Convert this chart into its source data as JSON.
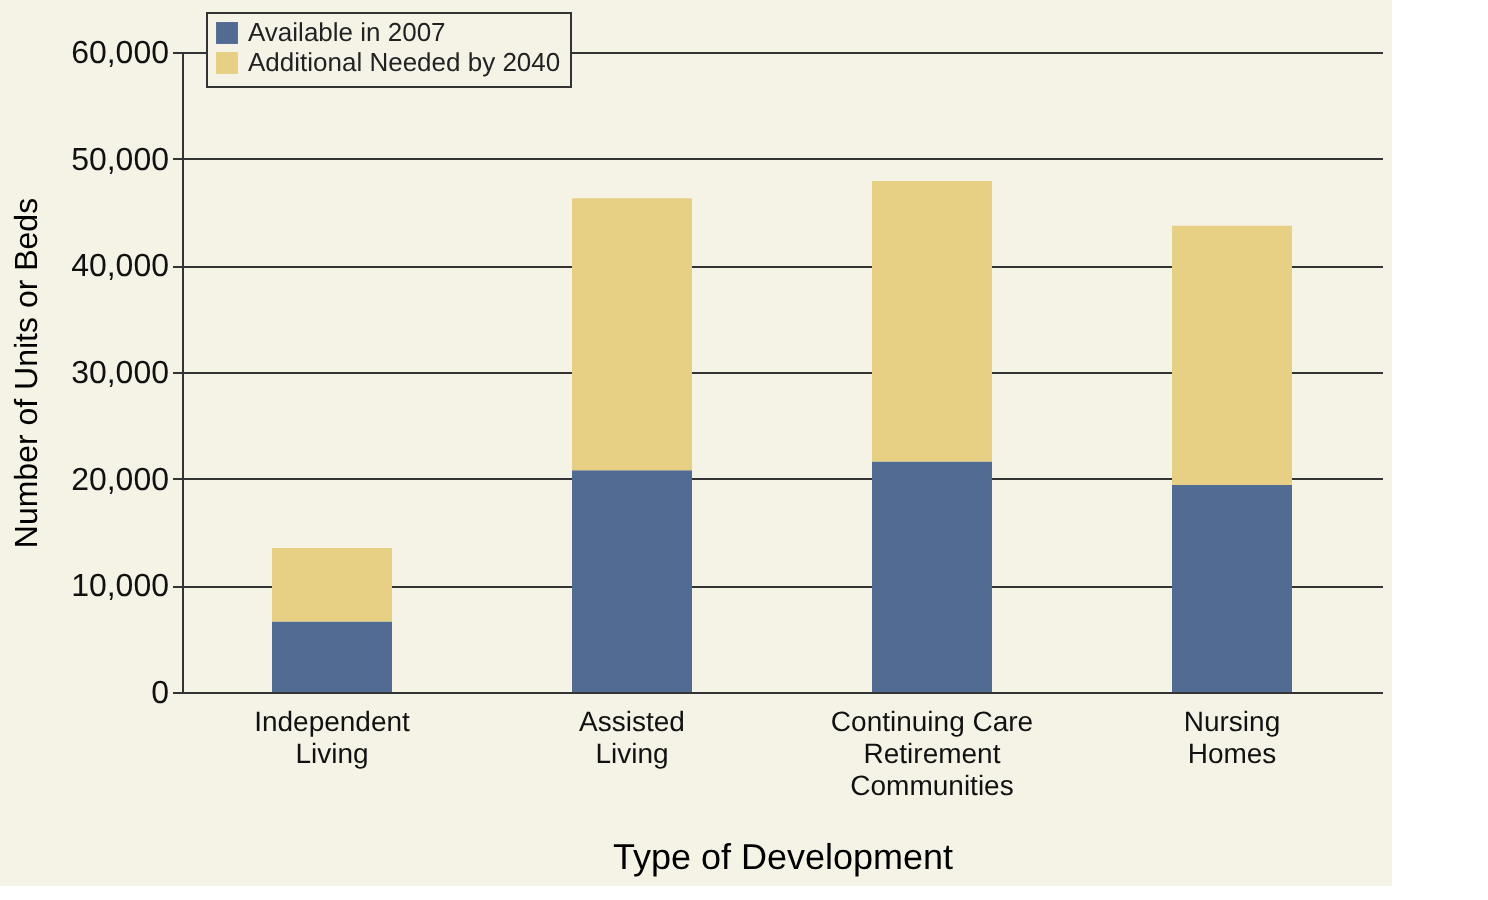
{
  "chart_data": {
    "type": "bar",
    "stacked": true,
    "xlabel": "Type of Development",
    "ylabel": "Number of Units or Beds",
    "categories": [
      "Independent\nLiving",
      "Assisted\nLiving",
      "Continuing Care\nRetirement\nCommunities",
      "Nursing\nHomes"
    ],
    "series": [
      {
        "name": "Available in 2007",
        "color": "#516b93",
        "values": [
          6600,
          20800,
          21600,
          19400
        ]
      },
      {
        "name": "Additional Needed by 2040",
        "color": "#e7cf84",
        "values": [
          6900,
          25500,
          26300,
          24300
        ]
      }
    ],
    "ylim": [
      0,
      60000
    ],
    "yticks": [
      {
        "value": 0,
        "label": "0"
      },
      {
        "value": 10000,
        "label": "10,000"
      },
      {
        "value": 20000,
        "label": "20,000"
      },
      {
        "value": 30000,
        "label": "30,000"
      },
      {
        "value": 40000,
        "label": "40,000"
      },
      {
        "value": 50000,
        "label": "50,000"
      },
      {
        "value": 60000,
        "label": "60,000"
      }
    ],
    "grid": "y",
    "legend": "top left"
  }
}
